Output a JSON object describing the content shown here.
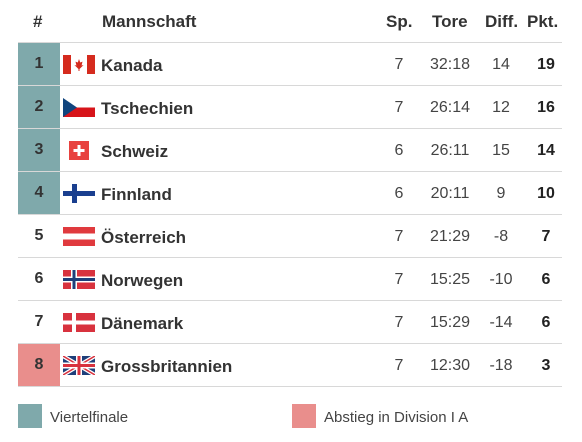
{
  "header": {
    "rank": "#",
    "team": "Mannschaft",
    "sp": "Sp.",
    "tore": "Tore",
    "diff": "Diff.",
    "pkt": "Pkt."
  },
  "rows": [
    {
      "rank": "1",
      "team": "Kanada",
      "flag": "canada-flag-icon",
      "sp": "7",
      "tore": "32:18",
      "diff": "14",
      "pkt": "19",
      "status": "quarterfinal"
    },
    {
      "rank": "2",
      "team": "Tschechien",
      "flag": "czech-flag-icon",
      "sp": "7",
      "tore": "26:14",
      "diff": "12",
      "pkt": "16",
      "status": "quarterfinal"
    },
    {
      "rank": "3",
      "team": "Schweiz",
      "flag": "switzerland-flag-icon",
      "sp": "6",
      "tore": "26:11",
      "diff": "15",
      "pkt": "14",
      "status": "quarterfinal"
    },
    {
      "rank": "4",
      "team": "Finnland",
      "flag": "finland-flag-icon",
      "sp": "6",
      "tore": "20:11",
      "diff": "9",
      "pkt": "10",
      "status": "quarterfinal"
    },
    {
      "rank": "5",
      "team": "Österreich",
      "flag": "austria-flag-icon",
      "sp": "7",
      "tore": "21:29",
      "diff": "-8",
      "pkt": "7",
      "status": "none"
    },
    {
      "rank": "6",
      "team": "Norwegen",
      "flag": "norway-flag-icon",
      "sp": "7",
      "tore": "15:25",
      "diff": "-10",
      "pkt": "6",
      "status": "none"
    },
    {
      "rank": "7",
      "team": "Dänemark",
      "flag": "denmark-flag-icon",
      "sp": "7",
      "tore": "15:29",
      "diff": "-14",
      "pkt": "6",
      "status": "none"
    },
    {
      "rank": "8",
      "team": "Grossbritannien",
      "flag": "uk-flag-icon",
      "sp": "7",
      "tore": "12:30",
      "diff": "-18",
      "pkt": "3",
      "status": "relegation"
    }
  ],
  "legend": {
    "quarterfinal": "Viertelfinale",
    "relegation": "Abstieg in Division I A"
  },
  "colors": {
    "quarterfinal": "#7fa9ab",
    "relegation": "#e98e8c"
  }
}
